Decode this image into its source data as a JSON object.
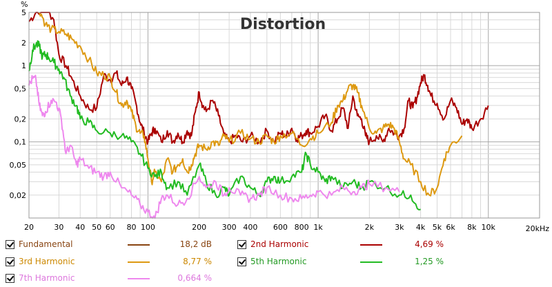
{
  "chart_data": {
    "type": "line",
    "title": "Distortion",
    "y_unit_label": "%",
    "x_unit_label": "20kHz",
    "x_scale": "log",
    "y_scale": "log",
    "xlim": [
      20,
      20000
    ],
    "ylim": [
      0.01,
      5
    ],
    "grid": true,
    "x_tick_labels": [
      {
        "v": 20,
        "t": "20"
      },
      {
        "v": 30,
        "t": "30"
      },
      {
        "v": 40,
        "t": "40"
      },
      {
        "v": 50,
        "t": "50"
      },
      {
        "v": 60,
        "t": "60"
      },
      {
        "v": 80,
        "t": "80"
      },
      {
        "v": 100,
        "t": "100"
      },
      {
        "v": 200,
        "t": "200"
      },
      {
        "v": 300,
        "t": "300"
      },
      {
        "v": 400,
        "t": "400"
      },
      {
        "v": 600,
        "t": "600"
      },
      {
        "v": 800,
        "t": "800"
      },
      {
        "v": 1000,
        "t": "1k"
      },
      {
        "v": 2000,
        "t": "2k"
      },
      {
        "v": 3000,
        "t": "3k"
      },
      {
        "v": 4000,
        "t": "4k"
      },
      {
        "v": 5000,
        "t": "5k"
      },
      {
        "v": 6000,
        "t": "6k"
      },
      {
        "v": 8000,
        "t": "8k"
      },
      {
        "v": 10000,
        "t": "10k"
      }
    ],
    "y_tick_labels": [
      {
        "v": 5,
        "t": "5"
      },
      {
        "v": 2,
        "t": "2"
      },
      {
        "v": 1,
        "t": "1"
      },
      {
        "v": 0.5,
        "t": "0,5"
      },
      {
        "v": 0.2,
        "t": "0,2"
      },
      {
        "v": 0.1,
        "t": "0,1"
      },
      {
        "v": 0.05,
        "t": "0,05"
      },
      {
        "v": 0.02,
        "t": "0,02"
      }
    ],
    "series": [
      {
        "name": "2nd Harmonic",
        "color": "#aa0000",
        "points": [
          [
            20,
            3.8
          ],
          [
            22,
            5
          ],
          [
            25,
            6
          ],
          [
            28,
            4
          ],
          [
            30,
            1.4
          ],
          [
            33,
            1.0
          ],
          [
            36,
            0.65
          ],
          [
            40,
            0.4
          ],
          [
            45,
            0.27
          ],
          [
            50,
            0.28
          ],
          [
            55,
            0.75
          ],
          [
            60,
            0.65
          ],
          [
            65,
            0.8
          ],
          [
            70,
            0.55
          ],
          [
            75,
            0.7
          ],
          [
            80,
            0.5
          ],
          [
            85,
            0.32
          ],
          [
            90,
            0.18
          ],
          [
            95,
            0.13
          ],
          [
            100,
            0.1
          ],
          [
            105,
            0.13
          ],
          [
            110,
            0.15
          ],
          [
            120,
            0.1
          ],
          [
            130,
            0.14
          ],
          [
            140,
            0.1
          ],
          [
            150,
            0.13
          ],
          [
            160,
            0.1
          ],
          [
            170,
            0.14
          ],
          [
            180,
            0.12
          ],
          [
            190,
            0.25
          ],
          [
            200,
            0.45
          ],
          [
            210,
            0.3
          ],
          [
            220,
            0.25
          ],
          [
            240,
            0.35
          ],
          [
            260,
            0.22
          ],
          [
            280,
            0.12
          ],
          [
            300,
            0.1
          ],
          [
            330,
            0.12
          ],
          [
            360,
            0.1
          ],
          [
            400,
            0.12
          ],
          [
            450,
            0.1
          ],
          [
            500,
            0.14
          ],
          [
            550,
            0.1
          ],
          [
            600,
            0.13
          ],
          [
            650,
            0.12
          ],
          [
            700,
            0.15
          ],
          [
            750,
            0.11
          ],
          [
            800,
            0.12
          ],
          [
            850,
            0.14
          ],
          [
            900,
            0.13
          ],
          [
            1000,
            0.16
          ],
          [
            1100,
            0.22
          ],
          [
            1200,
            0.14
          ],
          [
            1300,
            0.2
          ],
          [
            1400,
            0.28
          ],
          [
            1500,
            0.15
          ],
          [
            1600,
            0.4
          ],
          [
            1700,
            0.22
          ],
          [
            1800,
            0.2
          ],
          [
            1900,
            0.12
          ],
          [
            2000,
            0.1
          ],
          [
            2200,
            0.12
          ],
          [
            2400,
            0.1
          ],
          [
            2600,
            0.15
          ],
          [
            2800,
            0.13
          ],
          [
            3000,
            0.12
          ],
          [
            3200,
            0.15
          ],
          [
            3400,
            0.35
          ],
          [
            3600,
            0.28
          ],
          [
            3800,
            0.38
          ],
          [
            4000,
            0.6
          ],
          [
            4200,
            0.75
          ],
          [
            4400,
            0.55
          ],
          [
            4600,
            0.4
          ],
          [
            5000,
            0.32
          ],
          [
            5500,
            0.2
          ],
          [
            6000,
            0.35
          ],
          [
            6500,
            0.28
          ],
          [
            7000,
            0.17
          ],
          [
            7500,
            0.2
          ],
          [
            8000,
            0.15
          ],
          [
            9000,
            0.2
          ],
          [
            10000,
            0.3
          ]
        ]
      },
      {
        "name": "3rd Harmonic",
        "color": "#dd9911",
        "points": [
          [
            23,
            5.5
          ],
          [
            25,
            3.5
          ],
          [
            27,
            3.0
          ],
          [
            30,
            2.8
          ],
          [
            33,
            2.6
          ],
          [
            36,
            2.2
          ],
          [
            40,
            1.8
          ],
          [
            45,
            1.2
          ],
          [
            50,
            0.8
          ],
          [
            55,
            0.75
          ],
          [
            60,
            0.7
          ],
          [
            65,
            0.45
          ],
          [
            70,
            0.3
          ],
          [
            75,
            0.35
          ],
          [
            80,
            0.25
          ],
          [
            85,
            0.16
          ],
          [
            90,
            0.13
          ],
          [
            95,
            0.12
          ],
          [
            100,
            0.06
          ],
          [
            105,
            0.03
          ],
          [
            110,
            0.04
          ],
          [
            120,
            0.03
          ],
          [
            130,
            0.06
          ],
          [
            140,
            0.04
          ],
          [
            150,
            0.05
          ],
          [
            160,
            0.06
          ],
          [
            170,
            0.04
          ],
          [
            180,
            0.05
          ],
          [
            190,
            0.07
          ],
          [
            200,
            0.09
          ],
          [
            220,
            0.08
          ],
          [
            240,
            0.1
          ],
          [
            260,
            0.09
          ],
          [
            280,
            0.12
          ],
          [
            300,
            0.1
          ],
          [
            350,
            0.13
          ],
          [
            400,
            0.11
          ],
          [
            450,
            0.1
          ],
          [
            500,
            0.12
          ],
          [
            550,
            0.1
          ],
          [
            600,
            0.12
          ],
          [
            700,
            0.13
          ],
          [
            800,
            0.09
          ],
          [
            900,
            0.11
          ],
          [
            1000,
            0.13
          ],
          [
            1200,
            0.18
          ],
          [
            1300,
            0.3
          ],
          [
            1400,
            0.35
          ],
          [
            1500,
            0.5
          ],
          [
            1600,
            0.55
          ],
          [
            1700,
            0.45
          ],
          [
            1800,
            0.3
          ],
          [
            2000,
            0.15
          ],
          [
            2200,
            0.13
          ],
          [
            2400,
            0.15
          ],
          [
            2600,
            0.17
          ],
          [
            2800,
            0.15
          ],
          [
            3000,
            0.1
          ],
          [
            3200,
            0.06
          ],
          [
            3500,
            0.05
          ],
          [
            4000,
            0.03
          ],
          [
            4500,
            0.02
          ],
          [
            5000,
            0.025
          ],
          [
            5500,
            0.06
          ],
          [
            6000,
            0.09
          ],
          [
            7000,
            0.12
          ]
        ]
      },
      {
        "name": "5th Harmonic",
        "color": "#22bb22",
        "points": [
          [
            20,
            0.85
          ],
          [
            21,
            1.6
          ],
          [
            22,
            1.9
          ],
          [
            23,
            1.8
          ],
          [
            24,
            1.3
          ],
          [
            25,
            1.4
          ],
          [
            26,
            1.3
          ],
          [
            28,
            1.1
          ],
          [
            30,
            0.9
          ],
          [
            32,
            0.7
          ],
          [
            35,
            0.4
          ],
          [
            38,
            0.3
          ],
          [
            40,
            0.2
          ],
          [
            45,
            0.18
          ],
          [
            50,
            0.14
          ],
          [
            60,
            0.13
          ],
          [
            70,
            0.12
          ],
          [
            80,
            0.1
          ],
          [
            90,
            0.07
          ],
          [
            100,
            0.045
          ],
          [
            110,
            0.035
          ],
          [
            120,
            0.04
          ],
          [
            130,
            0.025
          ],
          [
            150,
            0.03
          ],
          [
            170,
            0.02
          ],
          [
            200,
            0.05
          ],
          [
            220,
            0.03
          ],
          [
            250,
            0.02
          ],
          [
            280,
            0.025
          ],
          [
            300,
            0.02
          ],
          [
            350,
            0.035
          ],
          [
            400,
            0.025
          ],
          [
            450,
            0.02
          ],
          [
            500,
            0.03
          ],
          [
            550,
            0.035
          ],
          [
            600,
            0.03
          ],
          [
            700,
            0.035
          ],
          [
            800,
            0.04
          ],
          [
            850,
            0.07
          ],
          [
            900,
            0.05
          ],
          [
            1000,
            0.04
          ],
          [
            1100,
            0.03
          ],
          [
            1200,
            0.035
          ],
          [
            1400,
            0.025
          ],
          [
            1600,
            0.03
          ],
          [
            1800,
            0.025
          ],
          [
            2000,
            0.03
          ],
          [
            2500,
            0.025
          ],
          [
            3000,
            0.02
          ],
          [
            3500,
            0.02
          ],
          [
            4000,
            0.013
          ]
        ]
      },
      {
        "name": "7th Harmonic",
        "color": "#ee88ee",
        "points": [
          [
            20,
            0.55
          ],
          [
            21,
            0.68
          ],
          [
            22,
            0.65
          ],
          [
            23,
            0.3
          ],
          [
            24,
            0.22
          ],
          [
            25,
            0.25
          ],
          [
            27,
            0.35
          ],
          [
            29,
            0.33
          ],
          [
            31,
            0.2
          ],
          [
            33,
            0.07
          ],
          [
            35,
            0.09
          ],
          [
            38,
            0.05
          ],
          [
            40,
            0.06
          ],
          [
            45,
            0.045
          ],
          [
            50,
            0.04
          ],
          [
            55,
            0.035
          ],
          [
            60,
            0.04
          ],
          [
            70,
            0.025
          ],
          [
            80,
            0.02
          ],
          [
            90,
            0.015
          ],
          [
            100,
            0.012
          ],
          [
            110,
            0.01
          ],
          [
            120,
            0.018
          ],
          [
            130,
            0.02
          ],
          [
            150,
            0.015
          ],
          [
            170,
            0.018
          ],
          [
            200,
            0.035
          ],
          [
            220,
            0.025
          ],
          [
            250,
            0.03
          ],
          [
            280,
            0.02
          ],
          [
            300,
            0.025
          ],
          [
            350,
            0.02
          ],
          [
            400,
            0.018
          ],
          [
            450,
            0.02
          ],
          [
            500,
            0.025
          ],
          [
            600,
            0.02
          ],
          [
            700,
            0.018
          ],
          [
            800,
            0.018
          ],
          [
            900,
            0.02
          ],
          [
            1000,
            0.022
          ],
          [
            1200,
            0.02
          ],
          [
            1400,
            0.025
          ],
          [
            1600,
            0.022
          ],
          [
            1800,
            0.025
          ],
          [
            2000,
            0.028
          ],
          [
            2500,
            0.025
          ],
          [
            3000,
            0.022
          ]
        ]
      }
    ]
  },
  "legend": {
    "items": [
      {
        "label": "Fundamental",
        "value": "18,2 dB",
        "color": "#884411",
        "text_color": "#884411"
      },
      {
        "label": "2nd Harmonic",
        "value": "4,69 %",
        "color": "#aa0000",
        "text_color": "#aa0000"
      },
      {
        "label": "3rd Harmonic",
        "value": "8,77 %",
        "color": "#dd9911",
        "text_color": "#cc8800"
      },
      {
        "label": "5th Harmonic",
        "value": "1,25 %",
        "color": "#22bb22",
        "text_color": "#229922"
      },
      {
        "label": "7th Harmonic",
        "value": "0,664 %",
        "color": "#ee88ee",
        "text_color": "#dd77dd"
      }
    ]
  }
}
